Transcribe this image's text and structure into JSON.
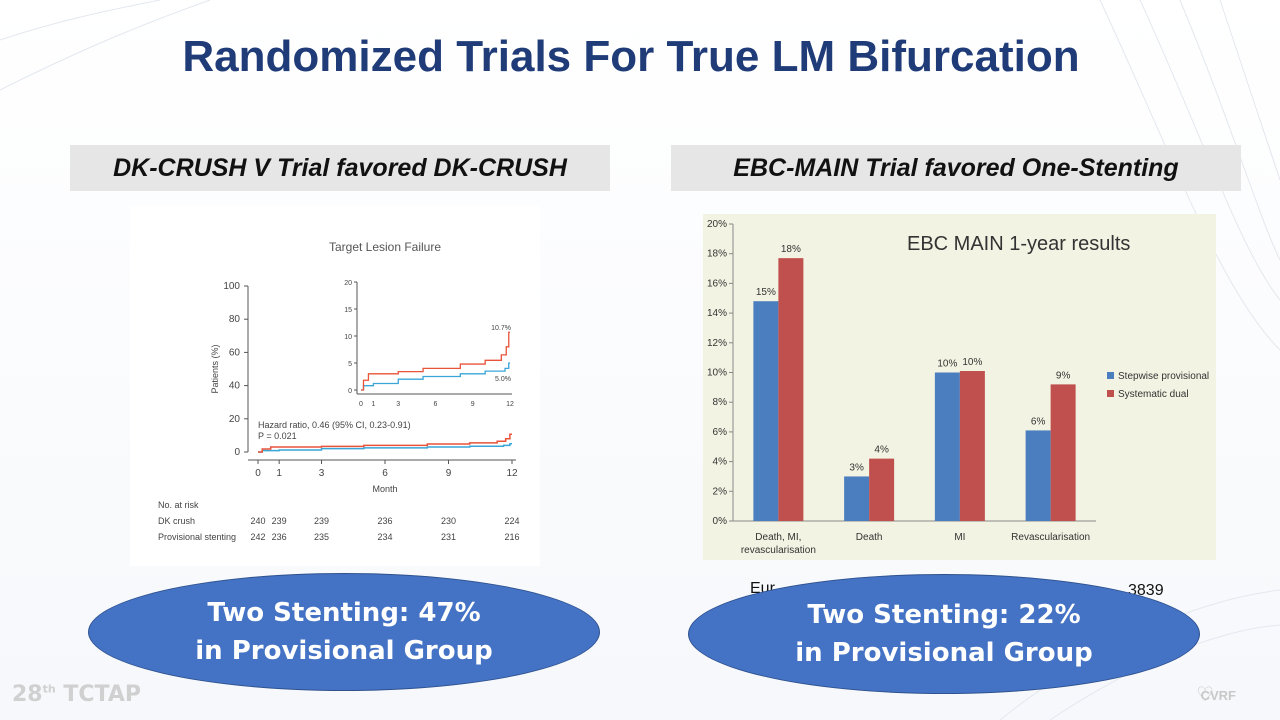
{
  "slide": {
    "title": "Randomized Trials For True LM Bifurcation",
    "left_header": "DK-CRUSH V Trial favored  DK-CRUSH",
    "right_header": "EBC-MAIN Trial favored One-Stenting",
    "left_citation": "",
    "right_citation": "Eur",
    "right_citation_end": "3839",
    "left_oval": {
      "line1": "Two Stenting: 47%",
      "line2": "in Provisional Group"
    },
    "right_oval": {
      "line1": "Two Stenting: 22%",
      "line2": "in Provisional Group"
    },
    "footer_left": "TCTAP",
    "footer_left_prefix": "28",
    "footer_left_sup": "th",
    "footer_right": "CVRF"
  },
  "colors": {
    "title": "#1f3c78",
    "oval": "#4472c4",
    "red": "#e8533a",
    "blue": "#3aa6d8",
    "bar_blue": "#4a7ebf",
    "bar_red": "#c0504d"
  },
  "chart_data": [
    {
      "type": "line",
      "title": "Target Lesion Failure",
      "xlabel": "Month",
      "ylabel": "Patients (%)",
      "ylim": [
        0,
        100
      ],
      "xlim": [
        0,
        12
      ],
      "x_ticks": [
        "0",
        "1",
        "3",
        "6",
        "9",
        "12"
      ],
      "y_ticks": [
        "0",
        "20",
        "40",
        "60",
        "80",
        "100"
      ],
      "inset": {
        "ylim": [
          0,
          20
        ],
        "y_ticks": [
          "0",
          "5",
          "10",
          "15",
          "20"
        ],
        "x_ticks": [
          "0",
          "1",
          "3",
          "6",
          "9",
          "12"
        ],
        "end_labels": [
          "10.7%",
          "5.0%"
        ]
      },
      "annotation": [
        "Hazard ratio, 0.46 (95% CI, 0.23-0.91)",
        "P = 0.021"
      ],
      "series": [
        {
          "name": "DK crush",
          "color": "#3aa6d8",
          "points": [
            [
              0,
              0
            ],
            [
              0.2,
              0.8
            ],
            [
              1,
              1.2
            ],
            [
              3,
              2.0
            ],
            [
              5,
              2.5
            ],
            [
              8,
              3.0
            ],
            [
              10,
              3.5
            ],
            [
              11.6,
              4.0
            ],
            [
              11.9,
              5.0
            ],
            [
              12,
              5.0
            ]
          ]
        },
        {
          "name": "Provisional stenting",
          "color": "#e8533a",
          "points": [
            [
              0,
              0
            ],
            [
              0.2,
              1.8
            ],
            [
              0.6,
              3.0
            ],
            [
              3,
              3.4
            ],
            [
              5,
              4.0
            ],
            [
              8,
              4.8
            ],
            [
              10,
              5.5
            ],
            [
              11.3,
              6.5
            ],
            [
              11.7,
              8.0
            ],
            [
              11.9,
              10.7
            ],
            [
              12,
              10.7
            ]
          ]
        }
      ],
      "at_risk": {
        "header": "No. at risk",
        "rows": [
          {
            "label": "DK crush",
            "values": [
              "240",
              "239",
              "239",
              "236",
              "230",
              "224"
            ]
          },
          {
            "label": "Provisional stenting",
            "values": [
              "242",
              "236",
              "235",
              "234",
              "231",
              "216"
            ]
          }
        ]
      }
    },
    {
      "type": "bar",
      "title": "EBC MAIN 1-year results",
      "categories": [
        "Death, MI,\nrevascularisation",
        "Death",
        "MI",
        "Revascularisation"
      ],
      "ylim": [
        0,
        20
      ],
      "y_ticks": [
        "0%",
        "2%",
        "4%",
        "6%",
        "8%",
        "10%",
        "12%",
        "14%",
        "16%",
        "18%",
        "20%"
      ],
      "legend_placement": "right",
      "series": [
        {
          "name": "Stepwise provisional",
          "color": "#4a7ebf",
          "values": [
            14.8,
            3.0,
            10.0,
            6.1
          ],
          "labels": [
            "15%",
            "3%",
            "10%",
            "6%"
          ]
        },
        {
          "name": "Systematic dual",
          "color": "#c0504d",
          "values": [
            17.7,
            4.2,
            10.1,
            9.2
          ],
          "labels": [
            "18%",
            "4%",
            "10%",
            "9%"
          ]
        }
      ]
    }
  ]
}
